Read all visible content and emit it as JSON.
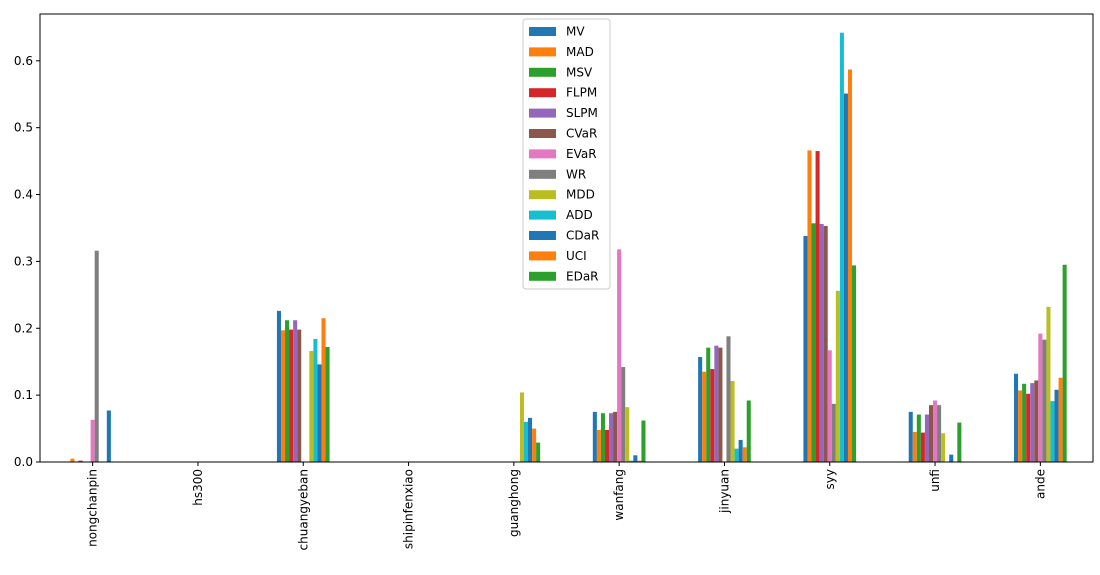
{
  "chart_data": {
    "type": "bar",
    "title": "",
    "xlabel": "",
    "ylabel": "",
    "ylim": [
      0,
      0.67
    ],
    "yticks": [
      0.0,
      0.1,
      0.2,
      0.3,
      0.4,
      0.5,
      0.6
    ],
    "ytick_labels": [
      "0.0",
      "0.1",
      "0.2",
      "0.3",
      "0.4",
      "0.5",
      "0.6"
    ],
    "grid": false,
    "legend_position": "top-center",
    "categories": [
      "nongchanpin",
      "hs300",
      "chuangyeban",
      "shipinfenxiao",
      "guanghong",
      "wanfang",
      "jinyuan",
      "syy",
      "unfi",
      "ande"
    ],
    "series": [
      {
        "name": "MV",
        "color": "#1f77b4",
        "values": [
          0.0,
          0.0,
          0.226,
          0.0,
          0.0,
          0.075,
          0.157,
          0.338,
          0.075,
          0.132
        ]
      },
      {
        "name": "MAD",
        "color": "#ff7f0e",
        "values": [
          0.005,
          0.0,
          0.197,
          0.0,
          0.0,
          0.048,
          0.135,
          0.466,
          0.045,
          0.107
        ]
      },
      {
        "name": "MSV",
        "color": "#2ca02c",
        "values": [
          0.0,
          0.0,
          0.212,
          0.0,
          0.0,
          0.073,
          0.171,
          0.357,
          0.071,
          0.117
        ]
      },
      {
        "name": "FLPM",
        "color": "#d62728",
        "values": [
          0.002,
          0.0,
          0.198,
          0.0,
          0.0,
          0.048,
          0.139,
          0.465,
          0.044,
          0.102
        ]
      },
      {
        "name": "SLPM",
        "color": "#9467bd",
        "values": [
          0.0,
          0.0,
          0.212,
          0.0,
          0.0,
          0.073,
          0.174,
          0.356,
          0.071,
          0.118
        ]
      },
      {
        "name": "CVaR",
        "color": "#8c564b",
        "values": [
          0.0,
          0.0,
          0.198,
          0.0,
          0.0,
          0.075,
          0.171,
          0.353,
          0.085,
          0.122
        ]
      },
      {
        "name": "EVaR",
        "color": "#e377c2",
        "values": [
          0.063,
          0.0,
          0.0,
          0.0,
          0.0,
          0.318,
          0.0,
          0.167,
          0.092,
          0.192
        ]
      },
      {
        "name": "WR",
        "color": "#7f7f7f",
        "values": [
          0.316,
          0.0,
          0.0,
          0.0,
          0.0,
          0.142,
          0.188,
          0.087,
          0.085,
          0.183
        ]
      },
      {
        "name": "MDD",
        "color": "#bcbd22",
        "values": [
          0.0,
          0.0,
          0.166,
          0.0,
          0.104,
          0.082,
          0.121,
          0.256,
          0.043,
          0.232
        ]
      },
      {
        "name": "ADD",
        "color": "#17becf",
        "values": [
          0.0,
          0.0,
          0.184,
          0.0,
          0.06,
          0.002,
          0.02,
          0.642,
          0.0,
          0.091
        ]
      },
      {
        "name": "CDaR",
        "color": "#1f77b4",
        "values": [
          0.077,
          0.0,
          0.146,
          0.0,
          0.066,
          0.01,
          0.033,
          0.551,
          0.011,
          0.108
        ]
      },
      {
        "name": "UCI",
        "color": "#ff7f0e",
        "values": [
          0.0,
          0.0,
          0.215,
          0.0,
          0.05,
          0.002,
          0.022,
          0.587,
          0.0,
          0.126
        ]
      },
      {
        "name": "EDaR",
        "color": "#2ca02c",
        "values": [
          0.0,
          0.0,
          0.172,
          0.0,
          0.029,
          0.062,
          0.092,
          0.294,
          0.059,
          0.295
        ]
      }
    ]
  }
}
